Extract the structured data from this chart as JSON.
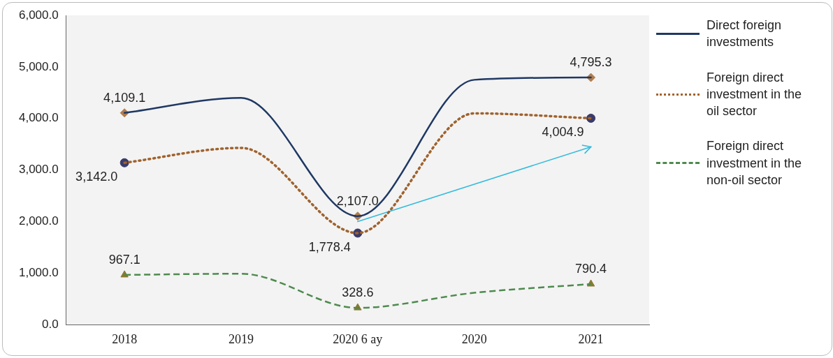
{
  "chart_data": {
    "type": "line",
    "categories": [
      "2018",
      "2019",
      "2020 6 ay",
      "2020",
      "2021"
    ],
    "ylim": [
      0,
      6000
    ],
    "yticks": [
      {
        "value": 0,
        "label": "0.0"
      },
      {
        "value": 1000,
        "label": "1,000.0"
      },
      {
        "value": 2000,
        "label": "2,000.0"
      },
      {
        "value": 3000,
        "label": "3,000.0"
      },
      {
        "value": 4000,
        "label": "4,000.0"
      },
      {
        "value": 5000,
        "label": "5,000.0"
      },
      {
        "value": 6000,
        "label": "6,000.0"
      }
    ],
    "legend": "right",
    "series": [
      {
        "name": "Direct foreign investments",
        "color": "#1f3864",
        "line_style": "solid",
        "values": [
          4109.1,
          4400,
          2107.0,
          4750,
          4795.3
        ]
      },
      {
        "name": "Foreign direct investment in the oil sector",
        "color": "#a0622d",
        "line_style": "dotted",
        "values": [
          3142.0,
          3430,
          1778.4,
          4100,
          4004.9
        ]
      },
      {
        "name": "Foreign direct investment in the non-oil sector",
        "color": "#4e8a4e",
        "line_style": "dashed",
        "values": [
          967.1,
          990,
          328.6,
          620,
          790.4
        ]
      },
      {
        "type": "line",
        "color": "#33bbdd",
        "line_style": "solid",
        "values": [
          null,
          null,
          2000,
          null,
          3450
        ]
      },
      {
        "type": "scatter",
        "color": "#b07c4e",
        "marker": "diamond",
        "values": [
          4109.1,
          null,
          2107.0,
          null,
          4795.3
        ],
        "value_labels": [
          "4,109.1",
          null,
          "2,107.0",
          null,
          "4,795.3"
        ]
      },
      {
        "type": "scatter",
        "color": "#3a3a6a",
        "marker": "circle",
        "values": [
          3142.0,
          null,
          1778.4,
          null,
          4004.9
        ],
        "value_labels": [
          "3,142.0",
          null,
          "1,778.4",
          null,
          "4,004.9"
        ]
      },
      {
        "type": "scatter",
        "color": "#8a7a30",
        "marker": "triangle",
        "values": [
          967.1,
          null,
          328.6,
          null,
          790.4
        ],
        "value_labels": [
          "967.1",
          null,
          "328.6",
          null,
          "790.4"
        ]
      }
    ]
  }
}
